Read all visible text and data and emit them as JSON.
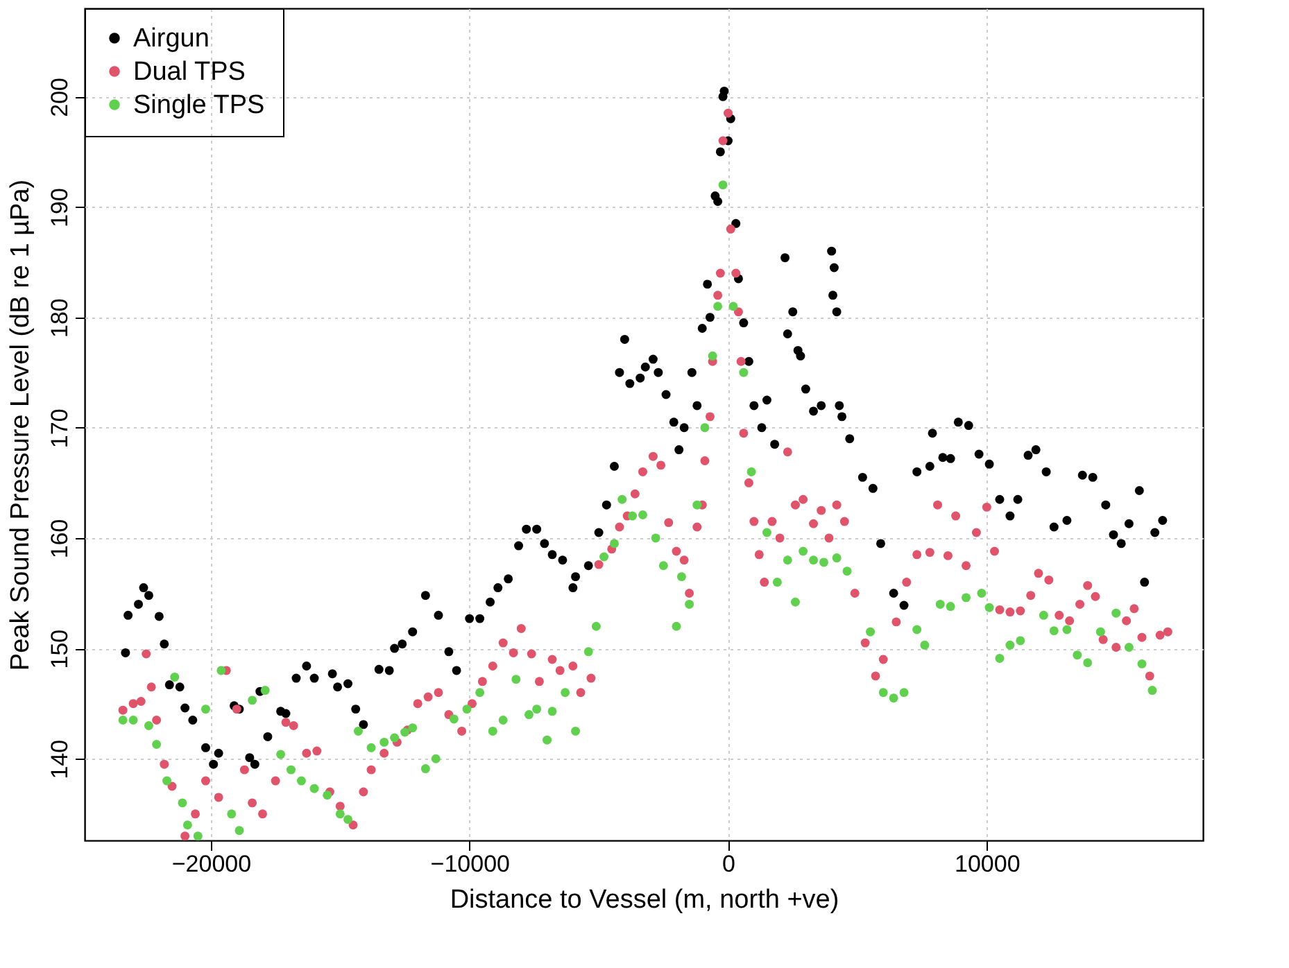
{
  "chart_data": {
    "type": "scatter",
    "xlabel": "Distance to Vessel (m, north +ve)",
    "ylabel": "Peak Sound Pressure Level (dB re 1 µPa)",
    "xlim": [
      -24880,
      18360
    ],
    "ylim": [
      132.6,
      208
    ],
    "xticks": [
      -20000,
      -10000,
      0,
      10000
    ],
    "yticks": [
      140,
      150,
      160,
      170,
      180,
      190,
      200
    ],
    "grid": true,
    "legend": "top left",
    "marker": "circle",
    "series": [
      {
        "name": "Airgun",
        "color": "#000000",
        "x": [
          -23300,
          -23200,
          -22800,
          -22600,
          -22400,
          -22000,
          -21800,
          -21600,
          -21200,
          -21000,
          -20700,
          -20200,
          -19900,
          -19700,
          -19100,
          -18900,
          -18500,
          -18300,
          -18100,
          -17800,
          -17300,
          -17100,
          -16700,
          -16300,
          -16000,
          -15300,
          -15100,
          -14700,
          -14400,
          -14100,
          -13500,
          -13100,
          -12900,
          -12600,
          -12200,
          -11700,
          -11200,
          -10800,
          -10500,
          -10000,
          -9600,
          -9200,
          -8900,
          -8500,
          -8100,
          -7800,
          -7400,
          -7100,
          -6800,
          -6400,
          -6000,
          -5900,
          -5400,
          -5000,
          -4700,
          -4400,
          -4200,
          -4000,
          -3800,
          -3400,
          -3200,
          -2900,
          -2700,
          -2400,
          -2100,
          -1900,
          -1700,
          -1400,
          -1200,
          -1000,
          -800,
          -700,
          -500,
          -400,
          -300,
          -200,
          -150,
          0,
          100,
          300,
          400,
          600,
          800,
          1000,
          1300,
          1500,
          1800,
          2200,
          2300,
          2500,
          2700,
          2800,
          3000,
          3300,
          3600,
          4000,
          4100,
          4050,
          4200,
          4300,
          4400,
          4700,
          5200,
          5600,
          5900,
          6400,
          6800,
          7300,
          7800,
          7900,
          8300,
          8600,
          8900,
          9300,
          9700,
          10100,
          10500,
          10900,
          11200,
          11600,
          11900,
          12300,
          12600,
          13100,
          13700,
          14100,
          14600,
          14900,
          15200,
          15500,
          15900,
          16100,
          16500,
          16800
        ],
        "values": [
          149.6,
          153,
          154,
          155.5,
          154.8,
          152.9,
          150.4,
          146.7,
          146.5,
          144.6,
          143.5,
          141,
          139.5,
          140.5,
          144.8,
          144.5,
          140.1,
          139.5,
          146.1,
          142,
          144.3,
          144.1,
          147.3,
          148.4,
          147.3,
          147.7,
          146.5,
          146.8,
          144.5,
          143.1,
          148.1,
          148,
          150,
          150.4,
          151.5,
          154.8,
          153,
          149.7,
          148,
          152.7,
          152.7,
          154.2,
          155.5,
          156.3,
          159.3,
          160.8,
          160.8,
          159.5,
          158.5,
          158,
          155.5,
          156.5,
          157.5,
          160.5,
          163,
          166.5,
          175,
          178,
          174,
          174.5,
          175.5,
          176.2,
          175,
          173,
          170.5,
          168,
          170,
          175,
          172,
          179,
          183,
          180,
          191,
          190.5,
          195,
          200,
          200.5,
          196,
          198,
          188.5,
          183.5,
          179.5,
          176,
          172,
          170,
          172.5,
          168.5,
          185.4,
          178.5,
          180.5,
          177,
          176.5,
          173.5,
          171.5,
          172,
          186,
          184.5,
          182,
          180.5,
          172,
          171,
          169,
          165.5,
          164.5,
          159.5,
          155,
          153.9,
          166,
          166.5,
          169.5,
          167.3,
          167.2,
          170.5,
          170.2,
          167.6,
          166.7,
          163.5,
          162,
          163.5,
          167.5,
          168,
          166,
          161,
          161.6,
          165.7,
          165.5,
          163,
          160.3,
          159.5,
          161.3,
          164.3,
          156,
          160.5,
          161.6
        ]
      },
      {
        "name": "Dual TPS",
        "color": "#df536b",
        "x": [
          -23400,
          -23000,
          -22700,
          -22500,
          -22300,
          -22100,
          -21800,
          -21500,
          -21000,
          -20600,
          -20200,
          -19700,
          -19400,
          -19000,
          -18700,
          -18400,
          -18000,
          -17500,
          -17100,
          -16800,
          -16300,
          -15900,
          -15400,
          -15000,
          -14500,
          -14100,
          -13800,
          -13300,
          -12800,
          -12400,
          -12000,
          -11600,
          -11200,
          -10800,
          -10300,
          -9900,
          -9500,
          -9100,
          -8700,
          -8300,
          -8000,
          -7600,
          -7300,
          -6800,
          -6500,
          -6000,
          -5700,
          -5300,
          -5000,
          -4500,
          -4200,
          -3900,
          -3600,
          -3300,
          -2900,
          -2600,
          -2300,
          -2000,
          -1700,
          -1500,
          -1200,
          -1000,
          -900,
          -700,
          -600,
          -400,
          -300,
          -200,
          0,
          100,
          300,
          400,
          500,
          600,
          800,
          1000,
          1200,
          1400,
          1700,
          2000,
          2300,
          2600,
          2900,
          3300,
          3600,
          3900,
          4200,
          4500,
          4900,
          5300,
          5700,
          6000,
          6500,
          6900,
          7300,
          7800,
          8100,
          8500,
          8800,
          9200,
          9600,
          10000,
          10300,
          10500,
          10900,
          11300,
          11700,
          12000,
          12400,
          12800,
          13200,
          13600,
          13900,
          14200,
          14500,
          15000,
          15400,
          15700,
          16000,
          16300,
          16700,
          17000
        ],
        "values": [
          144.4,
          145,
          145.2,
          149.5,
          146.5,
          143.5,
          139.5,
          137.5,
          133,
          135,
          138,
          136.5,
          148,
          144.5,
          139,
          136,
          135,
          138,
          143.3,
          143,
          140.5,
          140.7,
          137,
          135.7,
          134,
          137,
          139,
          140.5,
          141.5,
          142.6,
          145,
          145.6,
          146,
          144,
          142.5,
          145,
          147,
          148.4,
          150.5,
          149.6,
          151.8,
          149.5,
          147,
          149,
          148,
          148.4,
          146,
          147.3,
          157.6,
          159,
          161,
          162,
          164,
          166,
          167.4,
          166.6,
          161.4,
          158.8,
          158,
          155,
          161,
          163,
          167,
          171,
          176,
          182,
          184,
          196,
          198.5,
          188,
          184,
          180.5,
          176,
          169.5,
          165,
          161.5,
          158.5,
          156,
          161.5,
          160,
          167.8,
          163,
          163.5,
          161.3,
          162.5,
          160,
          163,
          161.5,
          155,
          150.5,
          147.5,
          149,
          152.4,
          156,
          158.5,
          158.7,
          163,
          158.4,
          162,
          157.5,
          160.5,
          162.8,
          158.8,
          153.5,
          153.3,
          153.4,
          154.8,
          156.8,
          156.2,
          153,
          152.5,
          154,
          155.7,
          154.7,
          150.8,
          150.1,
          152.5,
          153.6,
          151,
          147.5,
          151.2,
          151.5
        ]
      },
      {
        "name": "Single TPS",
        "color": "#61d04f",
        "x": [
          -23400,
          -23000,
          -22400,
          -22100,
          -21700,
          -21400,
          -21100,
          -20900,
          -20500,
          -20200,
          -19600,
          -19200,
          -18900,
          -18400,
          -17900,
          -17300,
          -16900,
          -16500,
          -16000,
          -15500,
          -15000,
          -14700,
          -14300,
          -13800,
          -13300,
          -12900,
          -12500,
          -12200,
          -11700,
          -11300,
          -10600,
          -10100,
          -9600,
          -9100,
          -8700,
          -8200,
          -7700,
          -7400,
          -7000,
          -6800,
          -6300,
          -5900,
          -5400,
          -5100,
          -4800,
          -4400,
          -4100,
          -3700,
          -3300,
          -2800,
          -2500,
          -2000,
          -1800,
          -1500,
          -1200,
          -900,
          -600,
          -400,
          -200,
          200,
          600,
          900,
          1500,
          1900,
          2300,
          2600,
          2900,
          3300,
          3700,
          4200,
          4600,
          5500,
          6000,
          6400,
          6800,
          7300,
          7600,
          8200,
          8600,
          9200,
          9800,
          10100,
          10500,
          10900,
          11300,
          12200,
          12600,
          13100,
          13500,
          13900,
          14400,
          15000,
          15500,
          16000,
          16400
        ],
        "values": [
          143.5,
          143.5,
          143,
          141.3,
          138,
          147.4,
          136,
          134,
          133,
          144.5,
          148,
          135,
          133.5,
          145.3,
          146.2,
          140.4,
          139,
          138,
          137.3,
          136.7,
          135,
          134.5,
          142.5,
          141,
          141.5,
          141.9,
          142.4,
          142.8,
          139.1,
          140,
          143.6,
          144.5,
          146,
          142.5,
          143.5,
          147.2,
          144,
          144.5,
          141.7,
          144.3,
          146,
          142.5,
          149.7,
          152,
          158.3,
          159.5,
          163.5,
          162,
          162.1,
          160,
          157.5,
          152,
          156.5,
          154,
          163,
          170,
          176.5,
          181,
          192,
          181,
          175,
          166,
          160.5,
          156,
          158,
          154.2,
          158.8,
          158,
          157.8,
          158.2,
          157,
          151.5,
          146,
          145.5,
          146,
          151.7,
          150.3,
          154,
          153.8,
          154.6,
          155,
          153.7,
          149.1,
          150.3,
          150.7,
          153,
          151.6,
          151.7,
          149.4,
          148.7,
          151.5,
          153.2,
          150.1,
          148.6,
          146.2
        ]
      }
    ]
  }
}
